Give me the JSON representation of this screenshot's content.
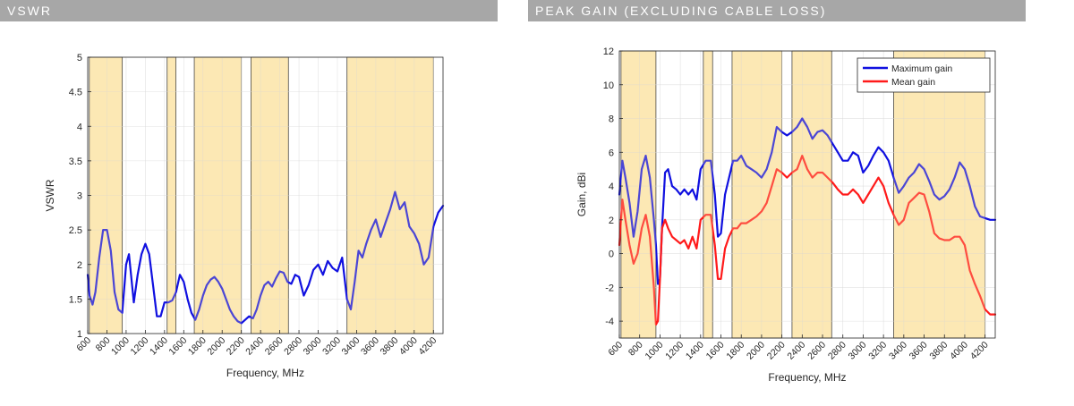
{
  "sections": {
    "left_title": "VSWR",
    "right_title": "PEAK GAIN (EXCLUDING CABLE LOSS)"
  },
  "colors": {
    "header_bg": "#a7a7a7",
    "band_fill": "#fde8b4",
    "max_gain": "#1010e0",
    "mean_gain": "#ff1a1a",
    "vswr_line": "#1010e0"
  },
  "chart_data": [
    {
      "type": "line",
      "title": "VSWR",
      "xlabel": "Frequency, MHz",
      "ylabel": "VSWR",
      "xlim": [
        600,
        4300
      ],
      "ylim": [
        1,
        5
      ],
      "grid": true,
      "xticks": [
        600,
        800,
        1000,
        1200,
        1400,
        1600,
        1800,
        2000,
        2200,
        2400,
        2600,
        2800,
        3000,
        3200,
        3400,
        3600,
        3800,
        4000,
        4200
      ],
      "yticks": [
        1,
        1.5,
        2,
        2.5,
        3,
        3.5,
        4,
        4.5,
        5
      ],
      "ytick_labels": [
        "1",
        "1.5",
        "2",
        "2.5",
        "3",
        "3.5",
        "4",
        "4.5",
        "5"
      ],
      "highlight_bands": [
        [
          617,
          960
        ],
        [
          1427,
          1518
        ],
        [
          1710,
          2200
        ],
        [
          2300,
          2690
        ],
        [
          3300,
          4200
        ]
      ],
      "series": [
        {
          "name": "VSWR",
          "x": [
            600,
            620,
            650,
            680,
            720,
            760,
            800,
            840,
            880,
            920,
            960,
            1000,
            1030,
            1080,
            1120,
            1160,
            1200,
            1240,
            1280,
            1320,
            1360,
            1400,
            1440,
            1480,
            1520,
            1560,
            1600,
            1640,
            1680,
            1720,
            1760,
            1800,
            1840,
            1880,
            1920,
            1960,
            2000,
            2040,
            2080,
            2120,
            2160,
            2200,
            2240,
            2280,
            2320,
            2360,
            2400,
            2440,
            2480,
            2520,
            2560,
            2600,
            2640,
            2680,
            2720,
            2760,
            2800,
            2850,
            2900,
            2950,
            3000,
            3050,
            3100,
            3150,
            3200,
            3250,
            3300,
            3340,
            3380,
            3420,
            3460,
            3500,
            3550,
            3600,
            3650,
            3700,
            3750,
            3800,
            3850,
            3900,
            3950,
            4000,
            4050,
            4100,
            4150,
            4200,
            4250,
            4300
          ],
          "values": [
            1.85,
            1.55,
            1.42,
            1.6,
            2.1,
            2.5,
            2.5,
            2.2,
            1.6,
            1.35,
            1.3,
            2.0,
            2.15,
            1.45,
            1.85,
            2.15,
            2.3,
            2.15,
            1.7,
            1.25,
            1.25,
            1.45,
            1.45,
            1.48,
            1.6,
            1.85,
            1.75,
            1.5,
            1.3,
            1.2,
            1.35,
            1.55,
            1.7,
            1.78,
            1.82,
            1.75,
            1.65,
            1.5,
            1.35,
            1.25,
            1.18,
            1.15,
            1.2,
            1.25,
            1.22,
            1.35,
            1.55,
            1.7,
            1.75,
            1.68,
            1.8,
            1.9,
            1.88,
            1.75,
            1.72,
            1.85,
            1.82,
            1.55,
            1.7,
            1.92,
            2.0,
            1.85,
            2.05,
            1.95,
            1.9,
            2.1,
            1.5,
            1.35,
            1.75,
            2.2,
            2.1,
            2.3,
            2.5,
            2.65,
            2.4,
            2.6,
            2.8,
            3.05,
            2.8,
            2.9,
            2.55,
            2.45,
            2.3,
            2.0,
            2.1,
            2.55,
            2.75,
            2.85
          ]
        }
      ]
    },
    {
      "type": "line",
      "title": "PEAK GAIN (EXCLUDING CABLE LOSS)",
      "xlabel": "Frequency, MHz",
      "ylabel": "Gain, dBi",
      "xlim": [
        600,
        4300
      ],
      "ylim": [
        -5,
        12
      ],
      "grid": true,
      "legend": "top-right",
      "xticks": [
        600,
        800,
        1000,
        1200,
        1400,
        1600,
        1800,
        2000,
        2200,
        2400,
        2600,
        2800,
        3000,
        3200,
        3400,
        3600,
        3800,
        4000,
        4200
      ],
      "yticks": [
        -4,
        -2,
        0,
        2,
        4,
        6,
        8,
        10,
        12
      ],
      "ytick_labels": [
        "-4",
        "-2",
        "0",
        "2",
        "4",
        "6",
        "8",
        "10",
        "12"
      ],
      "highlight_bands": [
        [
          617,
          960
        ],
        [
          1427,
          1518
        ],
        [
          1710,
          2200
        ],
        [
          2300,
          2690
        ],
        [
          3300,
          4200
        ]
      ],
      "series": [
        {
          "name": "Maximum gain",
          "x": [
            600,
            630,
            660,
            700,
            740,
            780,
            820,
            860,
            900,
            940,
            960,
            980,
            1000,
            1020,
            1050,
            1080,
            1120,
            1160,
            1200,
            1240,
            1280,
            1320,
            1360,
            1400,
            1450,
            1500,
            1540,
            1570,
            1600,
            1640,
            1680,
            1720,
            1760,
            1800,
            1850,
            1900,
            1950,
            2000,
            2050,
            2100,
            2150,
            2200,
            2250,
            2300,
            2350,
            2400,
            2450,
            2500,
            2550,
            2600,
            2650,
            2700,
            2750,
            2800,
            2850,
            2900,
            2950,
            3000,
            3050,
            3100,
            3150,
            3200,
            3250,
            3300,
            3350,
            3400,
            3450,
            3500,
            3550,
            3600,
            3650,
            3700,
            3750,
            3800,
            3850,
            3900,
            3950,
            4000,
            4050,
            4100,
            4150,
            4200,
            4250,
            4300
          ],
          "values": [
            3.5,
            5.5,
            4.5,
            3.0,
            1.0,
            2.5,
            5.0,
            5.8,
            4.5,
            2.0,
            0.5,
            -1.8,
            -1.5,
            1.5,
            4.8,
            5.0,
            4.0,
            3.8,
            3.5,
            3.8,
            3.5,
            3.8,
            3.2,
            5.0,
            5.5,
            5.5,
            3.5,
            1.0,
            1.2,
            3.5,
            4.5,
            5.5,
            5.5,
            5.8,
            5.2,
            5.0,
            4.8,
            4.5,
            5.0,
            6.0,
            7.5,
            7.2,
            7.0,
            7.2,
            7.5,
            8.0,
            7.5,
            6.8,
            7.2,
            7.3,
            7.0,
            6.5,
            6.0,
            5.5,
            5.5,
            6.0,
            5.8,
            4.8,
            5.2,
            5.8,
            6.3,
            6.0,
            5.5,
            4.5,
            3.6,
            4.0,
            4.5,
            4.8,
            5.3,
            5.0,
            4.3,
            3.5,
            3.2,
            3.4,
            3.8,
            4.5,
            5.4,
            5.0,
            4.0,
            2.8,
            2.2,
            2.1,
            2.0,
            2.0
          ]
        },
        {
          "name": "Mean gain",
          "x": [
            600,
            630,
            660,
            700,
            740,
            780,
            820,
            860,
            900,
            940,
            960,
            980,
            1000,
            1020,
            1050,
            1080,
            1120,
            1160,
            1200,
            1240,
            1280,
            1320,
            1360,
            1400,
            1450,
            1500,
            1540,
            1570,
            1600,
            1640,
            1680,
            1720,
            1760,
            1800,
            1850,
            1900,
            1950,
            2000,
            2050,
            2100,
            2150,
            2200,
            2250,
            2300,
            2350,
            2400,
            2450,
            2500,
            2550,
            2600,
            2650,
            2700,
            2750,
            2800,
            2850,
            2900,
            2950,
            3000,
            3050,
            3100,
            3150,
            3200,
            3250,
            3300,
            3350,
            3400,
            3450,
            3500,
            3550,
            3600,
            3650,
            3700,
            3750,
            3800,
            3850,
            3900,
            3950,
            4000,
            4050,
            4100,
            4150,
            4200,
            4250,
            4300
          ],
          "values": [
            0.5,
            3.2,
            2.0,
            0.5,
            -0.6,
            0.0,
            1.5,
            2.3,
            1.0,
            -2.0,
            -4.2,
            -4.0,
            -1.5,
            1.5,
            2.0,
            1.5,
            1.0,
            0.8,
            0.6,
            0.8,
            0.3,
            1.0,
            0.3,
            2.0,
            2.3,
            2.3,
            0.5,
            -1.5,
            -1.5,
            0.3,
            1.0,
            1.5,
            1.5,
            1.8,
            1.8,
            2.0,
            2.2,
            2.5,
            3.0,
            4.0,
            5.0,
            4.8,
            4.5,
            4.8,
            5.0,
            5.8,
            5.0,
            4.5,
            4.8,
            4.8,
            4.5,
            4.2,
            3.8,
            3.5,
            3.5,
            3.8,
            3.5,
            3.0,
            3.5,
            4.0,
            4.5,
            4.0,
            3.0,
            2.3,
            1.7,
            2.0,
            3.0,
            3.3,
            3.6,
            3.5,
            2.5,
            1.2,
            0.9,
            0.8,
            0.8,
            1.0,
            1.0,
            0.5,
            -1.0,
            -1.8,
            -2.5,
            -3.3,
            -3.6,
            -3.6
          ]
        }
      ]
    }
  ]
}
